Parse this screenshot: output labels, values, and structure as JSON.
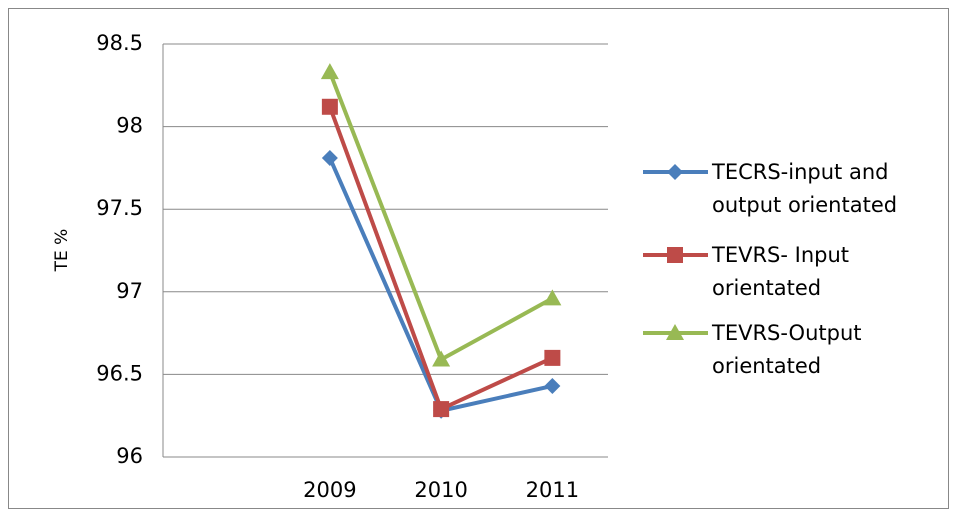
{
  "chart_data": {
    "type": "line",
    "y_label": "TE %",
    "categories": [
      null,
      "2009",
      "2010",
      "2011"
    ],
    "series": [
      {
        "name": "TECRS-input and output orientated",
        "color": "#4a7ebb",
        "marker": "diamond",
        "values": [
          null,
          97.81,
          96.28,
          96.43
        ]
      },
      {
        "name": "TEVRS- Input orientated",
        "color": "#be4b48",
        "marker": "square",
        "values": [
          null,
          98.12,
          96.29,
          96.6
        ]
      },
      {
        "name": "TEVRS-Output orientated",
        "color": "#98b954",
        "marker": "triangle",
        "values": [
          null,
          98.33,
          96.59,
          96.96
        ]
      }
    ],
    "ylim": [
      96,
      98.5
    ],
    "yticks": [
      96,
      96.5,
      97,
      97.5,
      98,
      98.5
    ],
    "grid": true,
    "legend": "right"
  }
}
